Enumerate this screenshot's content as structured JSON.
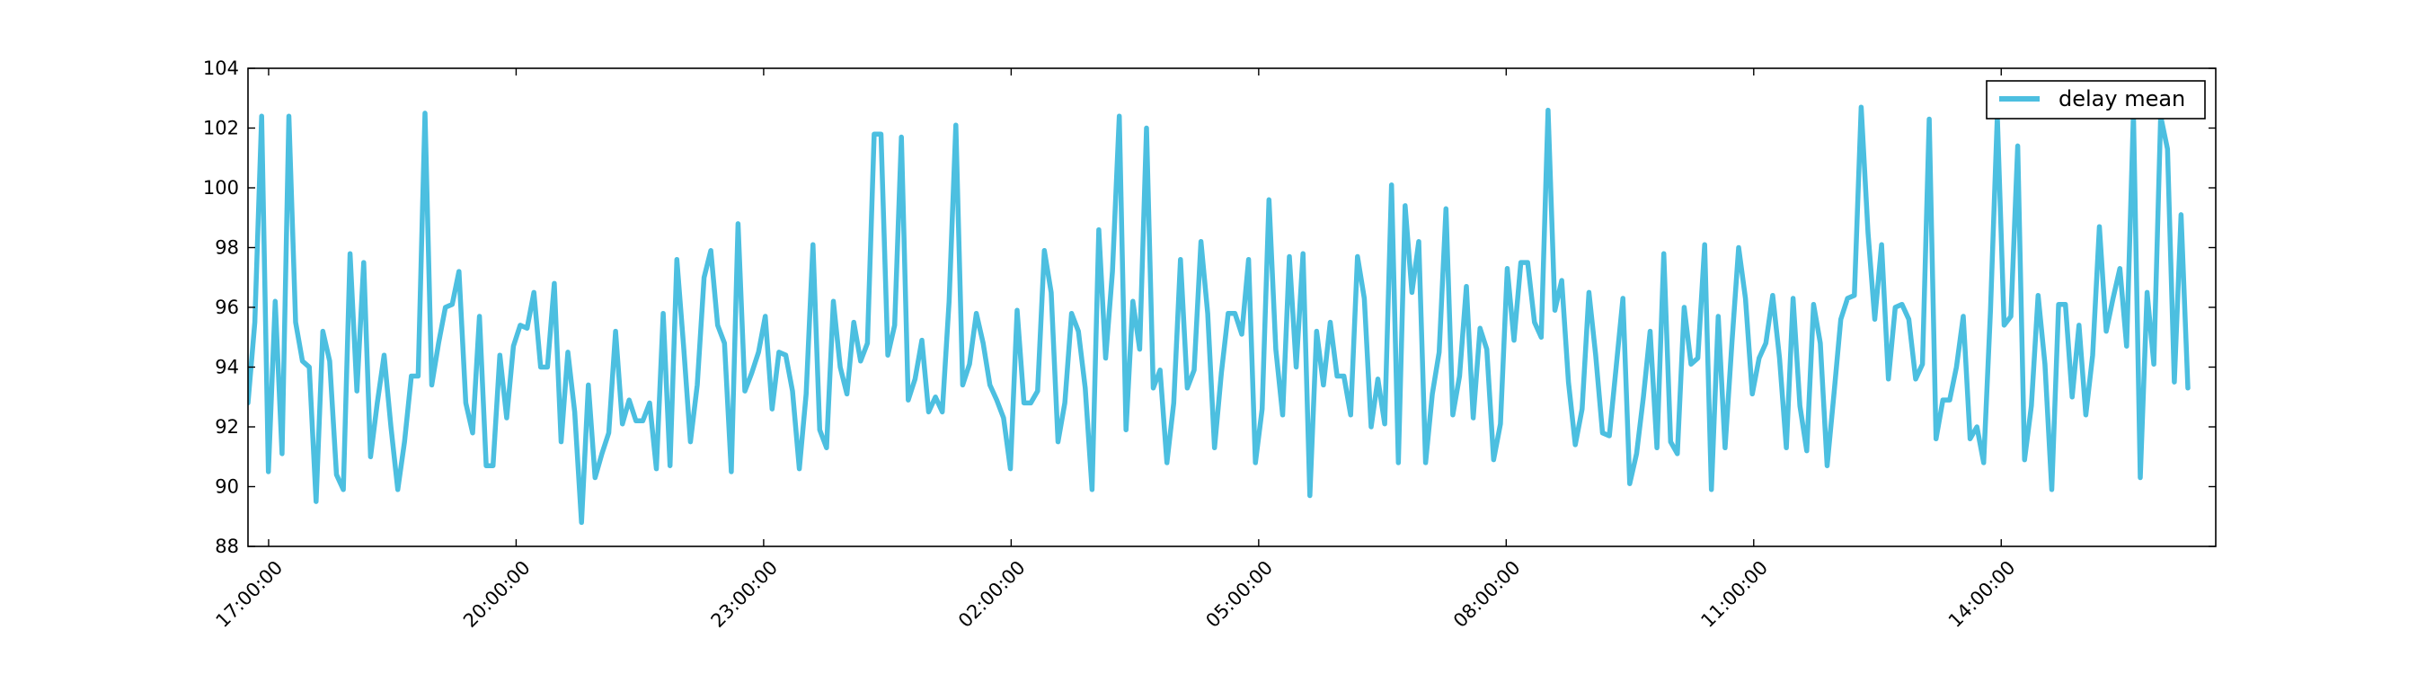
{
  "chart_data": {
    "type": "line",
    "title": "",
    "xlabel": "",
    "ylabel": "",
    "ylim": [
      88,
      104
    ],
    "yticks": [
      88,
      90,
      92,
      94,
      96,
      98,
      100,
      102,
      104
    ],
    "xlim_hours": [
      16.75,
      40.6
    ],
    "xtick_hours": [
      17,
      20,
      23,
      26,
      29,
      32,
      35,
      38
    ],
    "xtick_labels": [
      "17:00:00",
      "20:00:00",
      "23:00:00",
      "02:00:00",
      "05:00:00",
      "08:00:00",
      "11:00:00",
      "14:00:00"
    ],
    "grid": false,
    "legend": {
      "placement": "top-right"
    },
    "series": [
      {
        "name": "delay mean",
        "color": "#4cbfe0",
        "x_start_hour": 16.75,
        "x_step_hours": 0.0825,
        "values": [
          92.8,
          95.5,
          102.4,
          90.5,
          96.2,
          91.1,
          102.4,
          95.5,
          94.2,
          94.0,
          89.5,
          95.2,
          94.2,
          90.4,
          89.9,
          97.8,
          93.2,
          97.5,
          91.0,
          92.8,
          94.4,
          92.0,
          89.9,
          91.5,
          93.7,
          93.7,
          102.5,
          93.4,
          94.8,
          96.0,
          96.1,
          97.2,
          92.8,
          91.8,
          95.7,
          90.7,
          90.7,
          94.4,
          92.3,
          94.7,
          95.4,
          95.3,
          96.5,
          94.0,
          94.0,
          96.8,
          91.5,
          94.5,
          92.5,
          88.8,
          93.4,
          90.3,
          91.1,
          91.8,
          95.2,
          92.1,
          92.9,
          92.2,
          92.2,
          92.8,
          90.6,
          95.8,
          90.7,
          97.6,
          94.7,
          91.5,
          93.4,
          97.0,
          97.9,
          95.4,
          94.8,
          90.5,
          98.8,
          93.2,
          93.8,
          94.5,
          95.7,
          92.6,
          94.5,
          94.4,
          93.2,
          90.6,
          93.1,
          98.1,
          91.9,
          91.3,
          96.2,
          94.0,
          93.1,
          95.5,
          94.2,
          94.8,
          101.8,
          101.8,
          94.4,
          95.4,
          101.7,
          92.9,
          93.6,
          94.9,
          92.5,
          93.0,
          92.5,
          96.2,
          102.1,
          93.4,
          94.1,
          95.8,
          94.8,
          93.4,
          92.9,
          92.3,
          90.6,
          95.9,
          92.8,
          92.8,
          93.2,
          97.9,
          96.5,
          91.5,
          92.8,
          95.8,
          95.2,
          93.3,
          89.9,
          98.6,
          94.3,
          97.2,
          102.4,
          91.9,
          96.2,
          94.6,
          102.0,
          93.3,
          93.9,
          90.8,
          92.8,
          97.6,
          93.3,
          93.9,
          98.2,
          95.8,
          91.3,
          93.8,
          95.8,
          95.8,
          95.1,
          97.6,
          90.8,
          92.6,
          99.6,
          94.6,
          92.4,
          97.7,
          94.0,
          97.8,
          89.7,
          95.2,
          93.4,
          95.5,
          93.7,
          93.7,
          92.4,
          97.7,
          96.3,
          92.0,
          93.6,
          92.1,
          100.1,
          90.8,
          99.4,
          96.5,
          98.2,
          90.8,
          93.1,
          94.5,
          99.3,
          92.4,
          93.7,
          96.7,
          92.3,
          95.3,
          94.6,
          90.9,
          92.1,
          97.3,
          94.9,
          97.5,
          97.5,
          95.5,
          95.0,
          102.6,
          95.9,
          96.9,
          93.5,
          91.4,
          92.6,
          96.5,
          94.4,
          91.8,
          91.7,
          94.0,
          96.3,
          90.1,
          91.1,
          93.0,
          95.2,
          91.3,
          97.8,
          91.5,
          91.1,
          96.0,
          94.1,
          94.3,
          98.1,
          89.9,
          95.7,
          91.3,
          94.8,
          98.0,
          96.3,
          93.1,
          94.3,
          94.8,
          96.4,
          94.3,
          91.3,
          96.3,
          92.7,
          91.2,
          96.1,
          94.8,
          90.7,
          93.1,
          95.6,
          96.3,
          96.4,
          102.7,
          98.5,
          95.6,
          98.1,
          93.6,
          96.0,
          96.1,
          95.6,
          93.6,
          94.1,
          102.3,
          91.6,
          92.9,
          92.9,
          94.0,
          95.7,
          91.6,
          92.0,
          90.8,
          95.9,
          102.4,
          95.4,
          95.7,
          101.4,
          90.9,
          92.7,
          96.4,
          94.1,
          89.9,
          96.1,
          96.1,
          93.0,
          95.4,
          92.4,
          94.4,
          98.7,
          95.2,
          96.3,
          97.3,
          94.7,
          102.5,
          90.3,
          96.5,
          94.1,
          102.4,
          101.3,
          93.5,
          99.1,
          93.3
        ]
      }
    ]
  }
}
